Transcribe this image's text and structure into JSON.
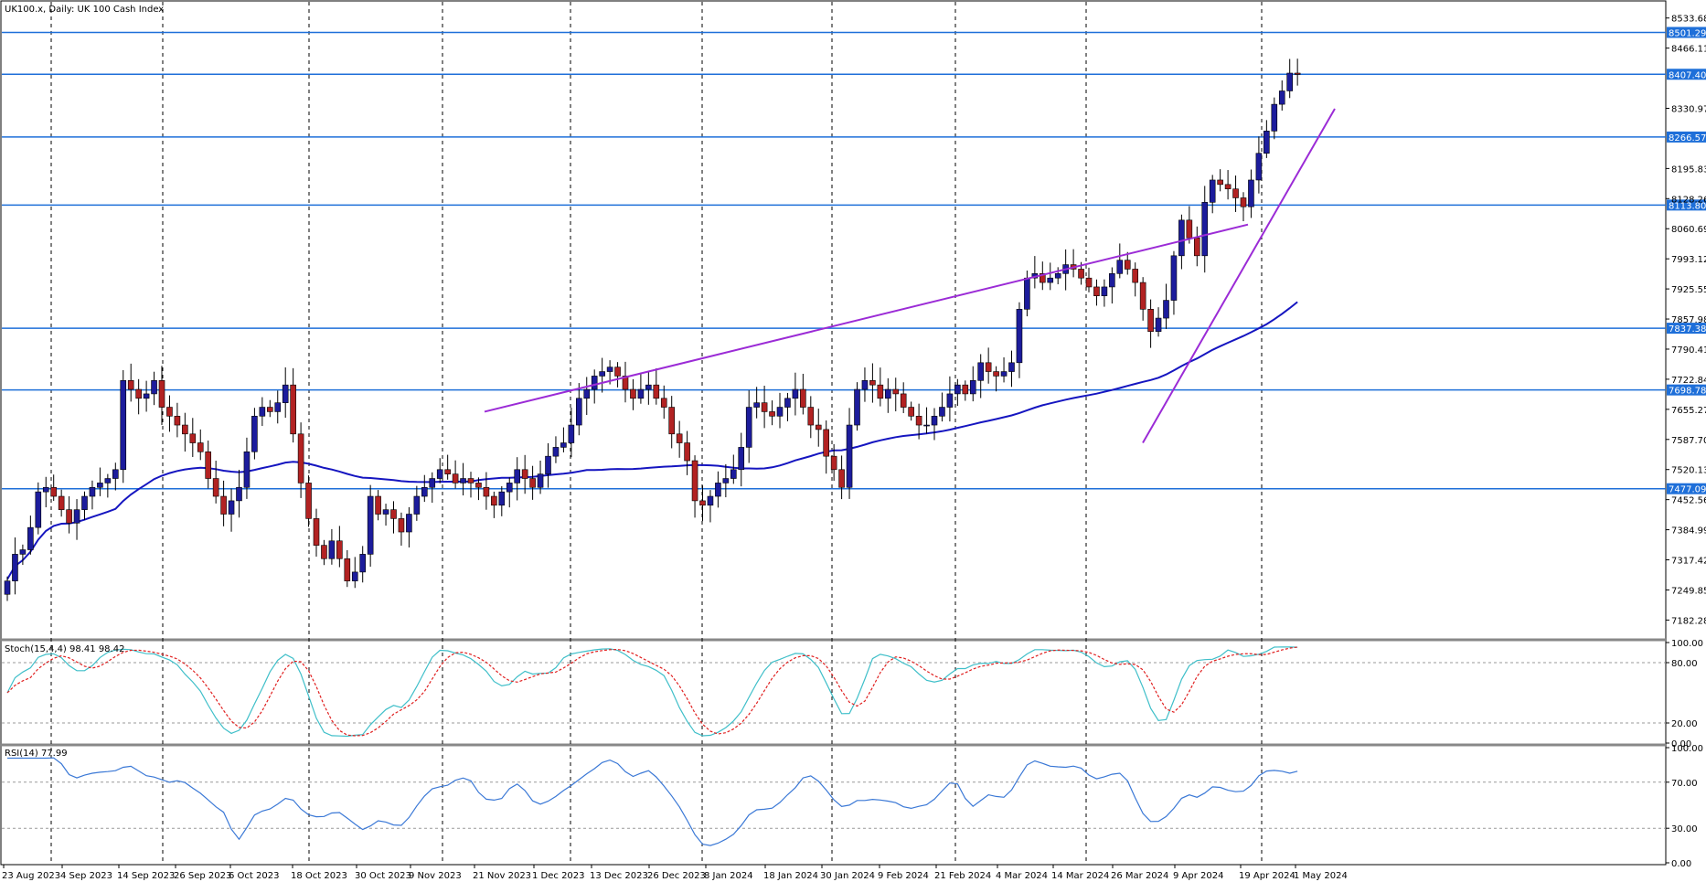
{
  "window": {
    "title": "UK100.x, Daily:  UK 100 Cash Index"
  },
  "colors": {
    "bull": "#1c1c9c",
    "bear": "#b22222",
    "ma": "#1515c0",
    "hline": "#1e6fd9",
    "trend": "#9b2bd6",
    "stoch_main": "#3fbfc9",
    "stoch_signal": "#e02020",
    "rsi": "#3a78d6",
    "grid": "#000000"
  },
  "chart_data": [
    {
      "type": "candlestick",
      "ylim": [
        7140,
        8570
      ],
      "y_ticks": [
        "8533.68",
        "8466.11",
        "8330.97",
        "8195.83",
        "8128.26",
        "8060.69",
        "7993.12",
        "7925.55",
        "7857.98",
        "7790.41",
        "7722.84",
        "7655.27",
        "7587.70",
        "7520.13",
        "7452.56",
        "7384.99",
        "7317.42",
        "7249.85",
        "7182.28"
      ],
      "price_levels": [
        "8501.29",
        "8407.40",
        "8266.57",
        "8113.80",
        "7837.38",
        "7698.78",
        "7477.09"
      ],
      "x_labels": [
        "23 Aug 2023",
        "4 Sep 2023",
        "14 Sep 2023",
        "26 Sep 2023",
        "6 Oct 2023",
        "18 Oct 2023",
        "30 Oct 2023",
        "9 Nov 2023",
        "21 Nov 2023",
        "1 Dec 2023",
        "13 Dec 2023",
        "26 Dec 2023",
        "8 Jan 2024",
        "18 Jan 2024",
        "30 Jan 2024",
        "9 Feb 2024",
        "21 Feb 2024",
        "4 Mar 2024",
        "14 Mar 2024",
        "26 Mar 2024",
        "9 Apr 2024",
        "19 Apr 2024",
        "1 May 2024"
      ],
      "closes": [
        7270,
        7330,
        7340,
        7390,
        7470,
        7480,
        7460,
        7430,
        7400,
        7430,
        7460,
        7480,
        7490,
        7500,
        7520,
        7720,
        7700,
        7680,
        7690,
        7720,
        7660,
        7640,
        7620,
        7600,
        7580,
        7560,
        7500,
        7460,
        7420,
        7450,
        7480,
        7560,
        7640,
        7660,
        7650,
        7670,
        7710,
        7600,
        7490,
        7410,
        7350,
        7320,
        7360,
        7320,
        7270,
        7290,
        7330,
        7460,
        7420,
        7430,
        7410,
        7380,
        7420,
        7460,
        7480,
        7500,
        7520,
        7510,
        7490,
        7500,
        7490,
        7480,
        7460,
        7440,
        7470,
        7490,
        7520,
        7500,
        7480,
        7510,
        7550,
        7570,
        7580,
        7620,
        7680,
        7700,
        7730,
        7740,
        7750,
        7730,
        7700,
        7680,
        7700,
        7710,
        7680,
        7660,
        7600,
        7580,
        7540,
        7450,
        7440,
        7460,
        7490,
        7500,
        7520,
        7570,
        7660,
        7670,
        7650,
        7640,
        7660,
        7680,
        7700,
        7660,
        7620,
        7610,
        7550,
        7520,
        7480,
        7620,
        7700,
        7720,
        7710,
        7680,
        7700,
        7690,
        7660,
        7640,
        7620,
        7620,
        7640,
        7660,
        7690,
        7710,
        7690,
        7720,
        7760,
        7740,
        7730,
        7740,
        7760,
        7880,
        7950,
        7960,
        7940,
        7950,
        7960,
        7980,
        7970,
        7950,
        7930,
        7910,
        7930,
        7960,
        7990,
        7970,
        7940,
        7880,
        7830,
        7860,
        7900,
        8000,
        8080,
        8040,
        8000,
        8120,
        8170,
        8160,
        8150,
        8130,
        8110,
        8170,
        8230,
        8280,
        8340,
        8370,
        8410,
        8407
      ]
    },
    {
      "type": "line",
      "title": "Stoch(15,4,4) 98.41 98.42",
      "ylim": [
        0,
        100
      ],
      "y_ticks": [
        "100.00",
        "80.00",
        "20.00",
        "0.00"
      ]
    },
    {
      "type": "line",
      "title": "RSI(14) 77.99",
      "ylim": [
        0,
        100
      ],
      "y_ticks": [
        "100.00",
        "70.00",
        "30.00",
        "0.00"
      ]
    }
  ]
}
